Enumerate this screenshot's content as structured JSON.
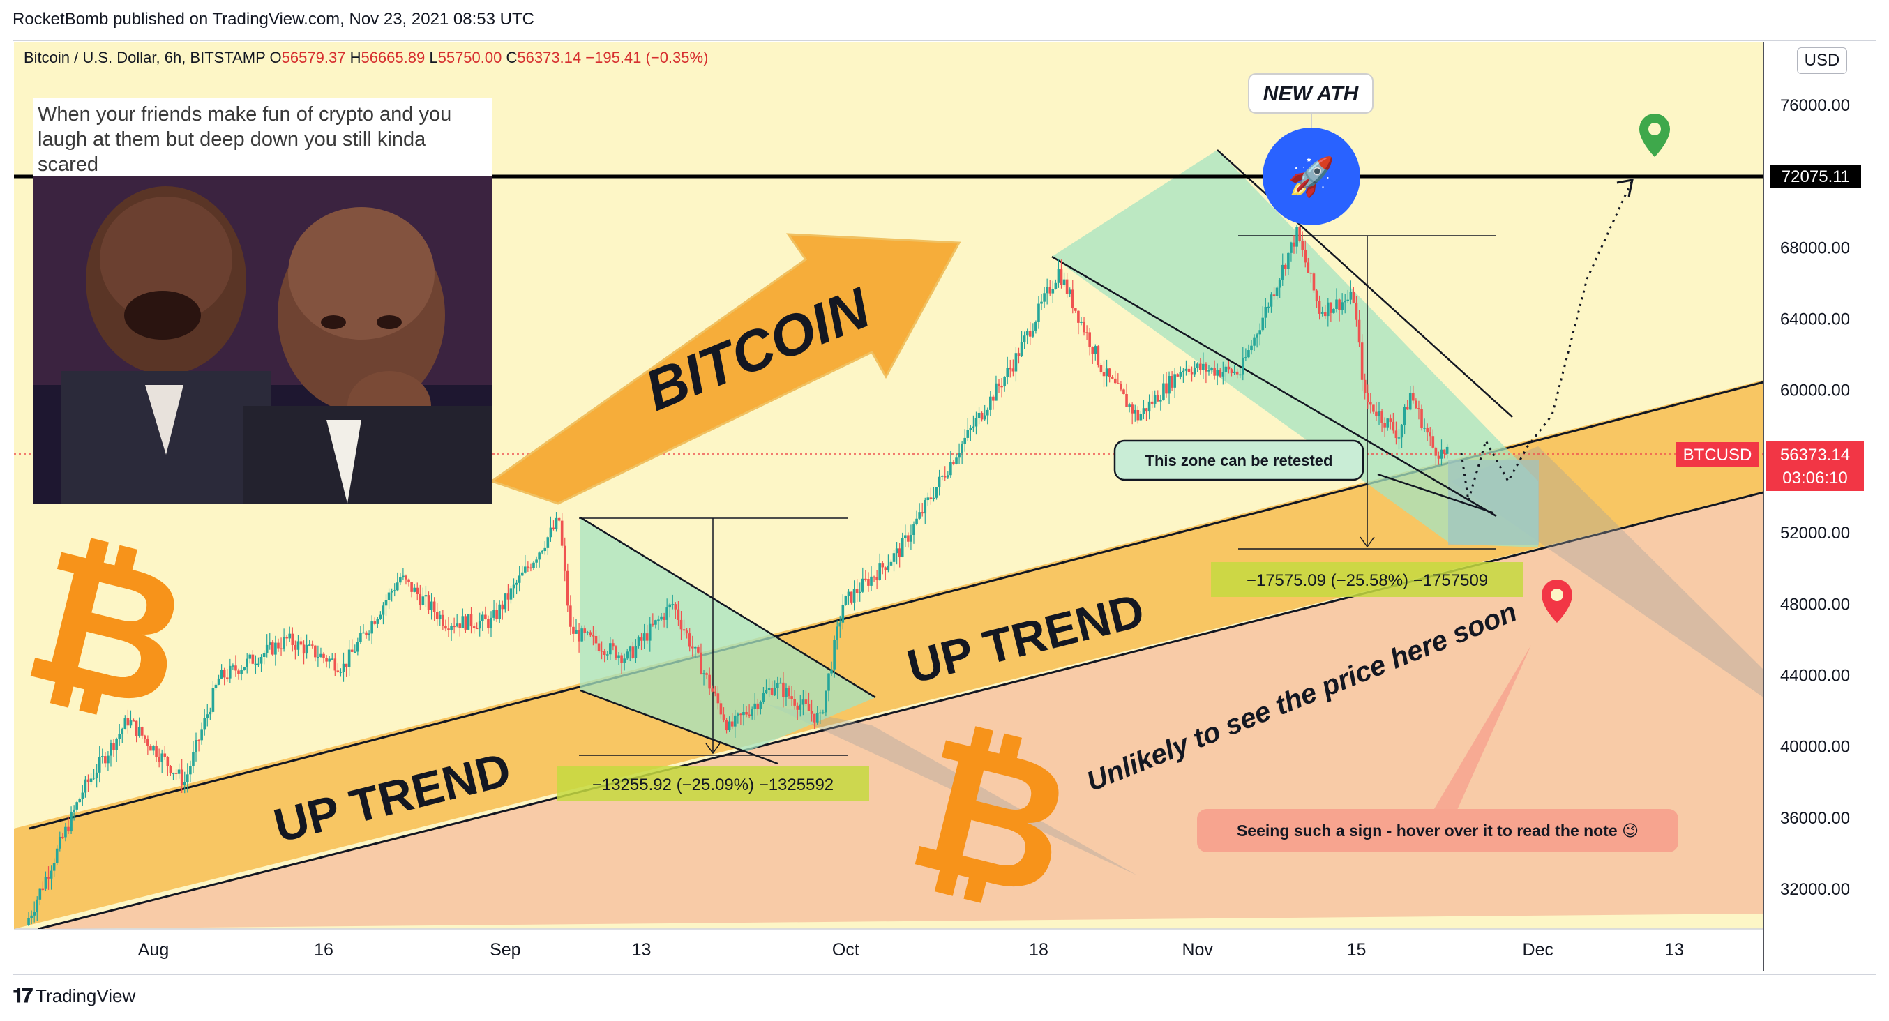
{
  "header": {
    "publisher": "RocketBomb published on TradingView.com, Nov 23, 2021 08:53 UTC"
  },
  "legend": {
    "symbol": "Bitcoin / U.S. Dollar, 6h, BITSTAMP",
    "o_label": "O",
    "o_value": "56579.37",
    "h_label": "H",
    "h_value": "56665.89",
    "l_label": "L",
    "l_value": "55750.00",
    "c_label": "C",
    "c_value": "56373.14",
    "change": "−195.41 (−0.35%)"
  },
  "meme": {
    "caption": "When your friends make fun of crypto and you laugh at them but deep down you still kinda scared"
  },
  "annotations": {
    "new_ath": "NEW ATH",
    "bitcoin": "BITCOIN",
    "up_trend_1": "UP TREND",
    "up_trend_2": "UP TREND",
    "unlikely": "Unlikely to see the price here soon",
    "retest": "This zone can be retested",
    "hover_note": "Seeing such a sign - hover over it to read the note 😉",
    "measure_1": "−13255.92 (−25.09%) −1325592",
    "measure_2": "−17575.09 (−25.58%) −1757509"
  },
  "price_axis": {
    "currency": "USD",
    "resistance_label": "72075.11",
    "symbol_tag": "BTCUSD",
    "last_price": "56373.14",
    "countdown": "03:06:10"
  },
  "footer": {
    "brand": "TradingView"
  },
  "colors": {
    "background": "#fdf6c6",
    "up_candle": "#26a69a",
    "down_candle": "#ef5350",
    "channel_orange": "#f7c158",
    "below_peach": "#f7c6a3",
    "green_zone": "#a6e3c0",
    "price_tag": "#f23645"
  },
  "chart_data": {
    "type": "candlestick",
    "title": "Bitcoin / U.S. Dollar, 6h, BITSTAMP",
    "ylim": [
      30000,
      78000
    ],
    "y_ticks": [
      32000,
      36000,
      40000,
      44000,
      48000,
      52000,
      56000,
      60000,
      64000,
      68000,
      72000,
      76000
    ],
    "y_tick_labels": [
      "32000.00",
      "36000.00",
      "40000.00",
      "44000.00",
      "48000.00",
      "52000.00",
      "56000.00",
      "60000.00",
      "64000.00",
      "68000.00",
      "72000.00",
      "76000.00"
    ],
    "x_ticks": [
      {
        "label": "Aug",
        "date": "2021-08-01"
      },
      {
        "label": "16",
        "date": "2021-08-16"
      },
      {
        "label": "Sep",
        "date": "2021-09-01"
      },
      {
        "label": "13",
        "date": "2021-09-13"
      },
      {
        "label": "Oct",
        "date": "2021-10-01"
      },
      {
        "label": "18",
        "date": "2021-10-18"
      },
      {
        "label": "Nov",
        "date": "2021-11-01"
      },
      {
        "label": "15",
        "date": "2021-11-15"
      },
      {
        "label": "Dec",
        "date": "2021-12-01"
      },
      {
        "label": "13",
        "date": "2021-12-13"
      }
    ],
    "price_path": [
      [
        "2021-07-21",
        30000
      ],
      [
        "2021-07-26",
        37500
      ],
      [
        "2021-07-30",
        41500
      ],
      [
        "2021-08-04",
        38000
      ],
      [
        "2021-08-07",
        43800
      ],
      [
        "2021-08-13",
        46000
      ],
      [
        "2021-08-18",
        44500
      ],
      [
        "2021-08-23",
        49500
      ],
      [
        "2021-08-27",
        47000
      ],
      [
        "2021-08-31",
        47000
      ],
      [
        "2021-09-06",
        52700
      ],
      [
        "2021-09-07",
        46500
      ],
      [
        "2021-09-12",
        45000
      ],
      [
        "2021-09-16",
        48000
      ],
      [
        "2021-09-21",
        41000
      ],
      [
        "2021-09-25",
        43500
      ],
      [
        "2021-09-29",
        41500
      ],
      [
        "2021-10-01",
        48000
      ],
      [
        "2021-10-06",
        51000
      ],
      [
        "2021-10-11",
        56500
      ],
      [
        "2021-10-16",
        61500
      ],
      [
        "2021-10-20",
        66700
      ],
      [
        "2021-10-24",
        61000
      ],
      [
        "2021-10-27",
        58500
      ],
      [
        "2021-10-31",
        61300
      ],
      [
        "2021-11-05",
        61000
      ],
      [
        "2021-11-10",
        68800
      ],
      [
        "2021-11-12",
        64500
      ],
      [
        "2021-11-15",
        65200
      ],
      [
        "2021-11-16",
        59500
      ],
      [
        "2021-11-19",
        57500
      ],
      [
        "2021-11-20",
        59800
      ],
      [
        "2021-11-22",
        56800
      ],
      [
        "2021-11-23",
        56373.14
      ]
    ],
    "current_price": 56373.14,
    "resistance": 72075.11,
    "grid": false,
    "legend_position": "top-left"
  }
}
